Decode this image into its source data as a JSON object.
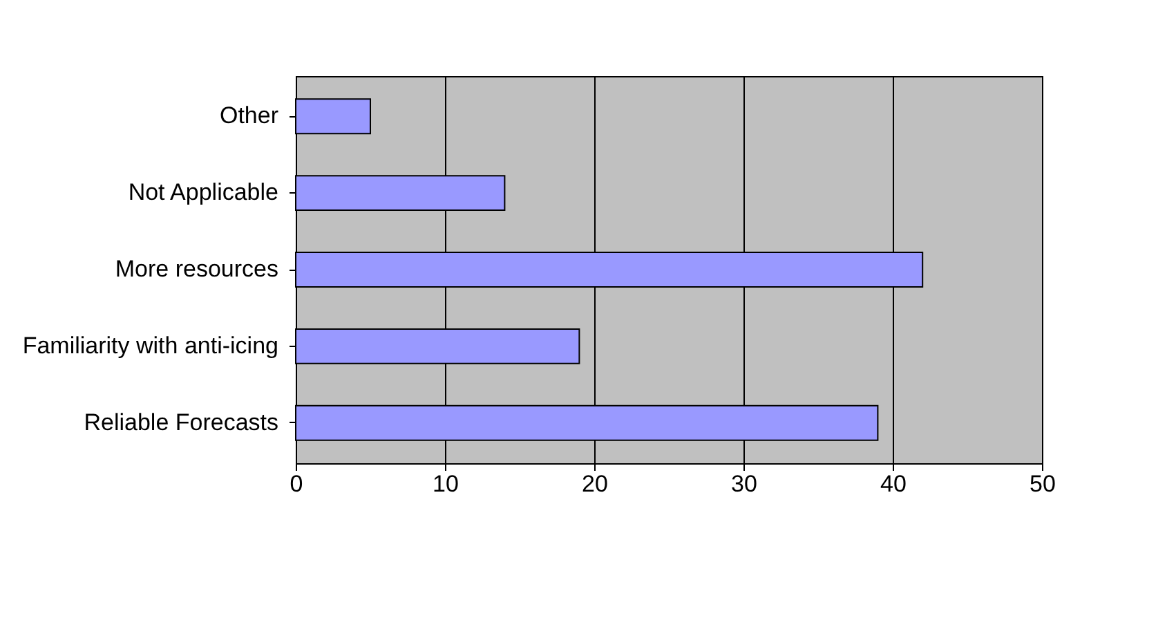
{
  "chart_data": {
    "type": "bar",
    "orientation": "horizontal",
    "categories": [
      "Other",
      "Not Applicable",
      "More resources",
      "Familiarity with anti-icing",
      "Reliable Forecasts"
    ],
    "values": [
      5,
      14,
      42,
      19,
      39
    ],
    "color": "#9999ff",
    "xlim": [
      0,
      50
    ],
    "xticks": [
      0,
      10,
      20,
      30,
      40,
      50
    ],
    "grid": "x"
  }
}
